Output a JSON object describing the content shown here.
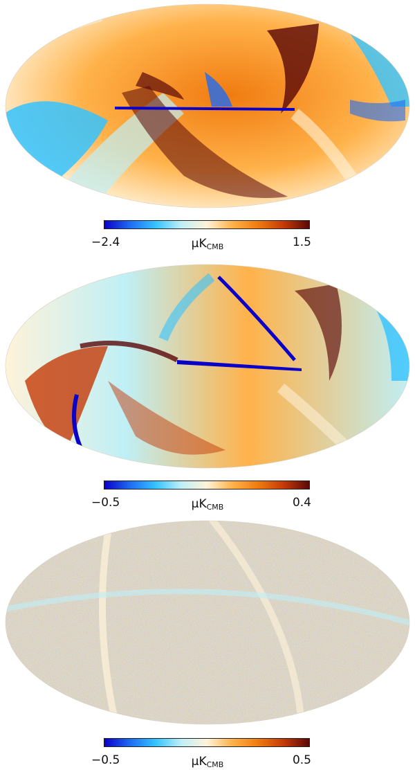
{
  "colormap": [
    "#0a00c8",
    "#1f6cf2",
    "#35c3ff",
    "#bfeff6",
    "#fff3da",
    "#ffb24a",
    "#f07b10",
    "#c43a08",
    "#5a0808"
  ],
  "panels": [
    {
      "colorbar": {
        "min_label": "−2.4",
        "max_label": "1.5",
        "unit_symbol": "μK",
        "unit_subscript": "CMB"
      }
    },
    {
      "colorbar": {
        "min_label": "−0.5",
        "max_label": "0.4",
        "unit_symbol": "μK",
        "unit_subscript": "CMB"
      }
    },
    {
      "colorbar": {
        "min_label": "−0.5",
        "max_label": "0.5",
        "unit_symbol": "μK",
        "unit_subscript": "CMB"
      }
    }
  ]
}
